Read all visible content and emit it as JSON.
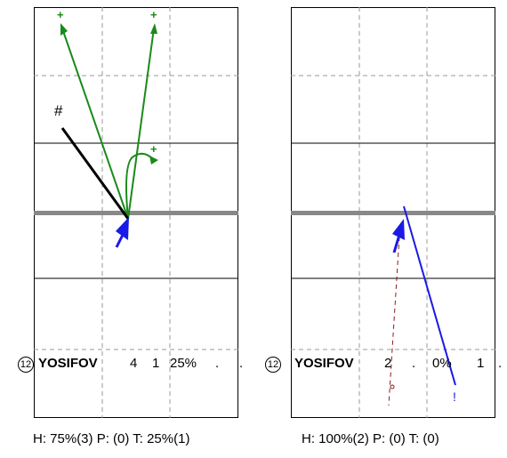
{
  "left": {
    "row": {
      "number": "12",
      "name": "YOSIFOV",
      "c1": "4",
      "c2": "1",
      "c3": "25%",
      "c4": ".",
      "c5": "."
    },
    "footer": "H: 75%(3)  P: (0)  T: 25%(1)",
    "marks": {
      "plus": "+",
      "hash": "#"
    }
  },
  "right": {
    "row": {
      "number": "12",
      "name": "YOSIFOV",
      "c1": "2",
      "c2": ".",
      "c3": "0%",
      "c4": "1",
      "c5": "."
    },
    "footer": "H: 100%(2)  P: (0)  T: (0)",
    "marks": {
      "excl": "!"
    }
  },
  "colors": {
    "green": "#1a8a1a",
    "blue": "#1a1ae6",
    "black": "#000000",
    "brown": "#8b1a1a",
    "net": "#888888",
    "grid": "#999999"
  }
}
